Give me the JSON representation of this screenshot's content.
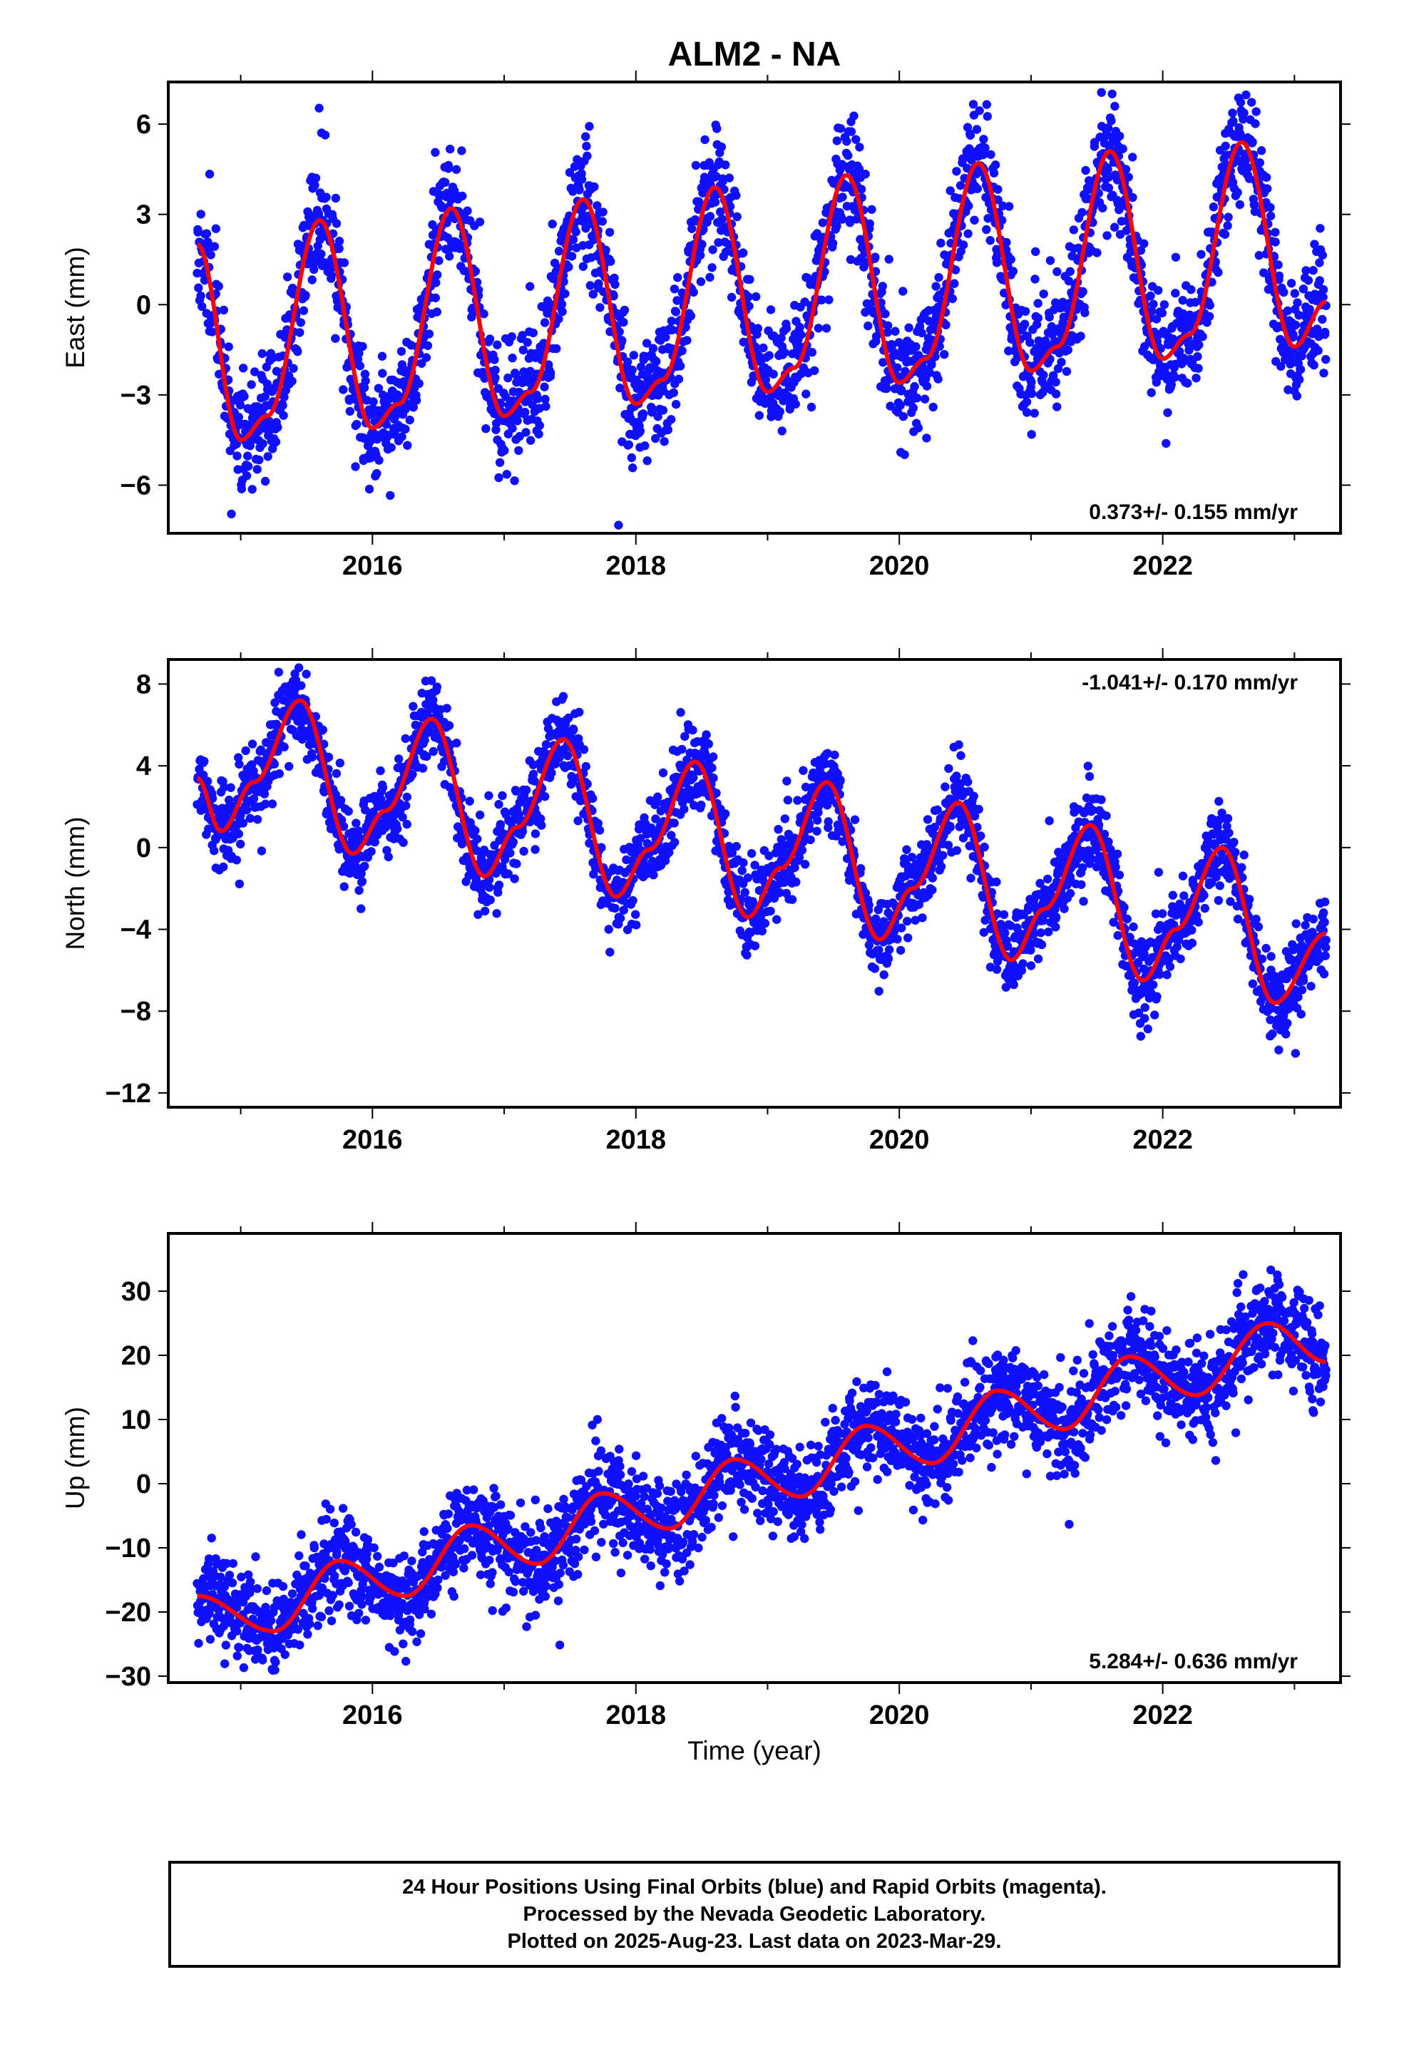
{
  "page": {
    "title": "ALM2 - NA",
    "xlabel": "Time (year)",
    "caption": {
      "line1": "24 Hour Positions Using Final Orbits (blue) and Rapid Orbits (magenta).",
      "line2": "Processed by the Nevada Geodetic Laboratory.",
      "line3": "Plotted on 2025-Aug-23. Last data on 2023-Mar-29."
    }
  },
  "colors": {
    "points": "#1010ff",
    "model": "#ff0000",
    "frame": "#000000"
  },
  "chart_data": [
    {
      "type": "scatter",
      "component": "east",
      "ylabel": "East (mm)",
      "rate_label": "0.373+/- 0.155 mm/yr",
      "rate_position": "bottom-right",
      "xlim": [
        2014.45,
        2023.35
      ],
      "ylim": [
        -7.6,
        7.4
      ],
      "x_ticks": [
        2016,
        2018,
        2020,
        2022
      ],
      "y_ticks": [
        -6,
        -3,
        0,
        3,
        6
      ],
      "grid": false,
      "time_range": [
        2014.67,
        2023.24
      ],
      "model": {
        "name": "",
        "x": [
          2014.67,
          2015.0,
          2015.2,
          2015.6,
          2016.0,
          2016.2,
          2016.6,
          2017.0,
          2017.2,
          2017.6,
          2018.0,
          2018.2,
          2018.6,
          2019.0,
          2019.2,
          2019.6,
          2020.0,
          2020.2,
          2020.6,
          2021.0,
          2021.2,
          2021.6,
          2022.0,
          2022.2,
          2022.6,
          2023.0,
          2023.24
        ],
        "values": [
          2.0,
          -4.5,
          -3.7,
          2.8,
          -4.1,
          -3.3,
          3.2,
          -3.7,
          -2.9,
          3.5,
          -3.3,
          -2.5,
          3.9,
          -2.9,
          -2.1,
          4.3,
          -2.6,
          -1.8,
          4.7,
          -2.2,
          -1.4,
          5.1,
          -1.8,
          -1.0,
          5.4,
          -1.4,
          0.1
        ]
      },
      "series_name": "",
      "scatter_sd": 1.0,
      "seed": 11
    },
    {
      "type": "scatter",
      "component": "north",
      "ylabel": "North (mm)",
      "rate_label": "-1.041+/- 0.170 mm/yr",
      "rate_position": "top-right",
      "xlim": [
        2014.45,
        2023.35
      ],
      "ylim": [
        -12.7,
        9.2
      ],
      "x_ticks": [
        2016,
        2018,
        2020,
        2022
      ],
      "y_ticks": [
        -12,
        -8,
        -4,
        0,
        4,
        8
      ],
      "grid": false,
      "time_range": [
        2014.67,
        2023.24
      ],
      "model": {
        "name": "",
        "x": [
          2014.67,
          2014.85,
          2015.1,
          2015.45,
          2015.85,
          2016.1,
          2016.45,
          2016.85,
          2017.1,
          2017.45,
          2017.85,
          2018.1,
          2018.45,
          2018.85,
          2019.1,
          2019.45,
          2019.85,
          2020.1,
          2020.45,
          2020.85,
          2021.1,
          2021.45,
          2021.85,
          2022.1,
          2022.45,
          2022.85,
          2023.24
        ],
        "values": [
          3.4,
          0.8,
          3.2,
          7.2,
          -0.3,
          1.8,
          6.3,
          -1.4,
          1.0,
          5.3,
          -2.4,
          -0.1,
          4.2,
          -3.4,
          -1.0,
          3.2,
          -4.5,
          -2.0,
          2.2,
          -5.5,
          -3.0,
          1.1,
          -6.5,
          -4.0,
          0.0,
          -7.6,
          -4.2
        ]
      },
      "series_name": "",
      "scatter_sd": 1.0,
      "seed": 23
    },
    {
      "type": "scatter",
      "component": "up",
      "ylabel": "Up (mm)",
      "rate_label": "5.284+/- 0.636 mm/yr",
      "rate_position": "bottom-right",
      "xlim": [
        2014.45,
        2023.35
      ],
      "ylim": [
        -31,
        39
      ],
      "x_ticks": [
        2016,
        2018,
        2020,
        2022
      ],
      "y_ticks": [
        -30,
        -20,
        -10,
        0,
        10,
        20,
        30
      ],
      "grid": false,
      "time_range": [
        2014.67,
        2023.24
      ],
      "model": {
        "name": "",
        "x": [
          2014.67,
          2015.25,
          2015.75,
          2016.25,
          2016.75,
          2017.25,
          2017.75,
          2018.25,
          2018.75,
          2019.25,
          2019.75,
          2020.25,
          2020.75,
          2021.25,
          2021.75,
          2022.25,
          2022.8,
          2023.24
        ],
        "values": [
          -17.5,
          -23.0,
          -12.0,
          -17.5,
          -6.5,
          -12.5,
          -1.5,
          -7.0,
          3.8,
          -2.0,
          9.0,
          3.2,
          14.5,
          8.5,
          19.8,
          13.8,
          25.0,
          19.0
        ]
      },
      "series_name": "",
      "scatter_sd": 3.6,
      "seed": 37
    }
  ]
}
